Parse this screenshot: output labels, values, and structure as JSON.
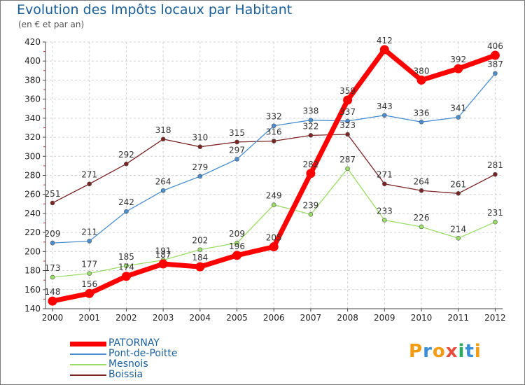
{
  "chart_data": {
    "type": "line",
    "title": "Evolution des Impôts locaux par Habitant",
    "subtitle": "(en € et par an)",
    "xlabel": "",
    "ylabel": "",
    "categories": [
      "2000",
      "2001",
      "2002",
      "2003",
      "2004",
      "2005",
      "2006",
      "2007",
      "2008",
      "2009",
      "2010",
      "2011",
      "2012"
    ],
    "ylim": [
      140,
      420
    ],
    "yticks": [
      140,
      160,
      180,
      200,
      220,
      240,
      260,
      280,
      300,
      320,
      340,
      360,
      380,
      400,
      420
    ],
    "grid": "horizontal dashed",
    "legend_position": "bottom-left",
    "series": [
      {
        "name": "PATORNAY",
        "color": "#ff0000",
        "values": [
          148,
          156,
          174,
          187,
          184,
          196,
          205,
          282,
          359,
          412,
          380,
          392,
          406
        ],
        "labels": [
          "148",
          "156",
          "174",
          "187",
          "184",
          "196",
          "205",
          "282",
          "359",
          "412",
          "380",
          "392",
          "406"
        ]
      },
      {
        "name": "Pont-de-Poitte",
        "color": "#4a8ed0",
        "values": [
          209,
          211,
          242,
          264,
          279,
          297,
          332,
          338,
          337,
          343,
          336,
          341,
          387
        ],
        "labels": [
          "209",
          "211",
          "242",
          "264",
          "279",
          "297",
          "332",
          "338",
          "337",
          "343",
          "336",
          "341",
          "387"
        ]
      },
      {
        "name": "Mesnois",
        "color": "#99dd66",
        "values": [
          173,
          177,
          185,
          191,
          202,
          209,
          249,
          239,
          287,
          233,
          226,
          214,
          231
        ],
        "labels": [
          "173",
          "177",
          "185",
          "191",
          "202",
          "209",
          "249",
          "239",
          "287",
          "233",
          "226",
          "214",
          "231"
        ]
      },
      {
        "name": "Boissia",
        "color": "#7a2424",
        "values": [
          251,
          271,
          292,
          318,
          310,
          315,
          316,
          322,
          323,
          271,
          264,
          261,
          281
        ],
        "labels": [
          "251",
          "271",
          "292",
          "318",
          "310",
          "315",
          "316",
          "322",
          "323",
          "271",
          "264",
          "261",
          "281"
        ]
      }
    ]
  },
  "logo": {
    "text": "Proxiti",
    "letters": [
      "P",
      "r",
      "o",
      "x",
      "i",
      "t",
      "i"
    ],
    "colors": [
      "#f39c12",
      "#3a8fd8",
      "#f39c12",
      "#e74c3c",
      "#27ae60",
      "#3a8fd8",
      "#f39c12"
    ]
  }
}
